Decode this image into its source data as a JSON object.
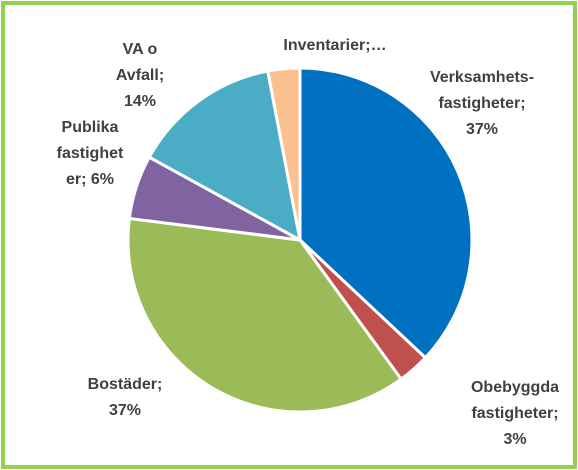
{
  "chart_data": {
    "type": "pie",
    "values": [
      37,
      3,
      37,
      6,
      14,
      3
    ],
    "value_labels": [
      [
        "Verksamhets-",
        "fastigheter;",
        "37%"
      ],
      [
        "Obebyggda",
        "fastigheter;",
        "3%"
      ],
      [
        "Bostäder;",
        "37%"
      ],
      [
        "Publika",
        "fastighet",
        "er; 6%"
      ],
      [
        "VA o",
        "Avfall;",
        "14%"
      ],
      [
        "Inventarier;…"
      ]
    ],
    "colors": [
      "#0070c0",
      "#c0504d",
      "#9bbb59",
      "#8064a2",
      "#4bacc6",
      "#fac090"
    ]
  }
}
